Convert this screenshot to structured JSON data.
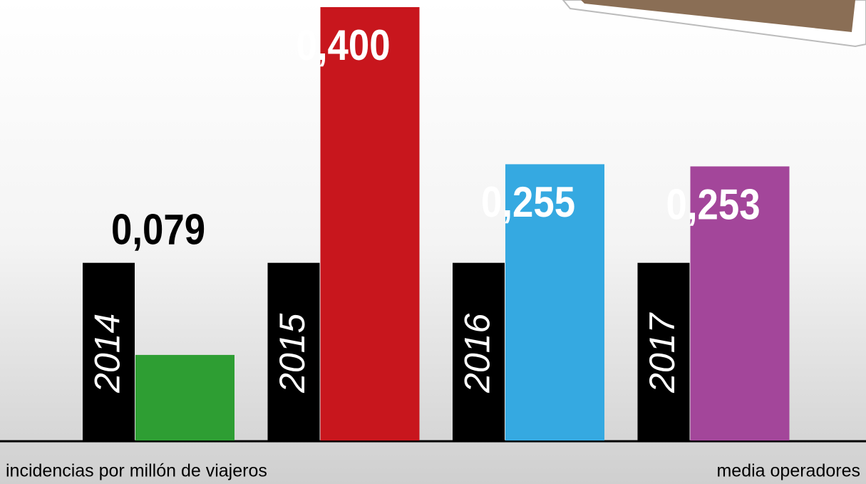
{
  "chart_data": {
    "type": "bar",
    "categories": [
      "2014",
      "2015",
      "2016",
      "2017"
    ],
    "series": [
      {
        "name": "media operadores",
        "color": "#000000",
        "values": [
          0.164,
          0.164,
          0.164,
          0.164
        ]
      },
      {
        "name": "incidencias por millón de viajeros",
        "colors": [
          "#2e9e33",
          "#c8161d",
          "#35a9e1",
          "#a3469a"
        ],
        "values": [
          0.079,
          0.4,
          0.255,
          0.253
        ],
        "value_labels": [
          "0,079",
          "0,400",
          "0,255",
          "0,253"
        ]
      }
    ],
    "ylim": [
      0,
      0.4
    ]
  }
}
